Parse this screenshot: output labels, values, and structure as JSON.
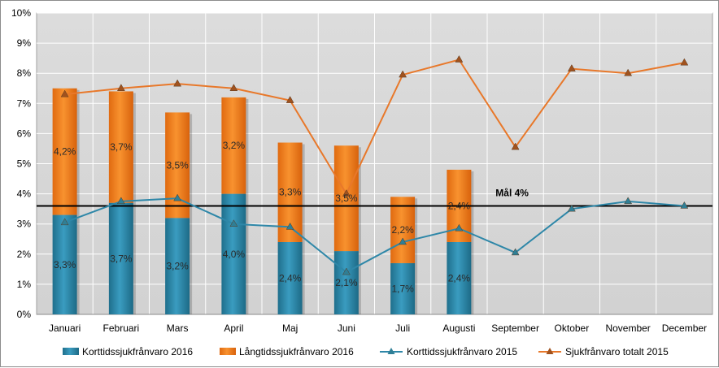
{
  "chart_data": {
    "type": "bar",
    "categories": [
      "Januari",
      "Februari",
      "Mars",
      "April",
      "Maj",
      "Juni",
      "Juli",
      "Augusti",
      "September",
      "Oktober",
      "November",
      "December"
    ],
    "ylim": [
      0,
      10
    ],
    "y_ticks": [
      "0%",
      "1%",
      "2%",
      "3%",
      "4%",
      "5%",
      "6%",
      "7%",
      "8%",
      "9%",
      "10%"
    ],
    "grid": true,
    "legend_position": "bottom",
    "bar_series": [
      {
        "name": "Korttidssjukfrånvaro 2016",
        "color": "#2e87a8",
        "values": [
          3.3,
          3.7,
          3.2,
          4.0,
          2.4,
          2.1,
          1.7,
          2.4,
          null,
          null,
          null,
          null
        ],
        "labels": [
          "3,3%",
          "3,7%",
          "3,2%",
          "4,0%",
          "2,4%",
          "2,1%",
          "1,7%",
          "2,4%",
          "",
          "",
          "",
          ""
        ]
      },
      {
        "name": "Långtidssjukfrånvaro 2016",
        "color": "#f47a1f",
        "values": [
          4.2,
          3.7,
          3.5,
          3.2,
          3.3,
          3.5,
          2.2,
          2.4,
          null,
          null,
          null,
          null
        ],
        "labels": [
          "4,2%",
          "3,7%",
          "3,5%",
          "3,2%",
          "3,3%",
          "3,5%",
          "2,2%",
          "2,4%",
          "",
          "",
          "",
          ""
        ]
      }
    ],
    "line_series": [
      {
        "name": "Korttidssjukfrånvaro 2015",
        "color": "#2e87a8",
        "values": [
          3.05,
          3.75,
          3.85,
          3.0,
          2.9,
          1.4,
          2.4,
          2.85,
          2.05,
          3.5,
          3.75,
          3.6
        ]
      },
      {
        "name": "Sjukfrånvaro totalt 2015",
        "color": "#e8782a",
        "values": [
          7.3,
          7.5,
          7.65,
          7.5,
          7.1,
          4.0,
          7.95,
          8.45,
          5.55,
          8.15,
          8.0,
          8.35
        ]
      }
    ],
    "target": {
      "value": 3.6,
      "label": "Mål 4%"
    }
  }
}
